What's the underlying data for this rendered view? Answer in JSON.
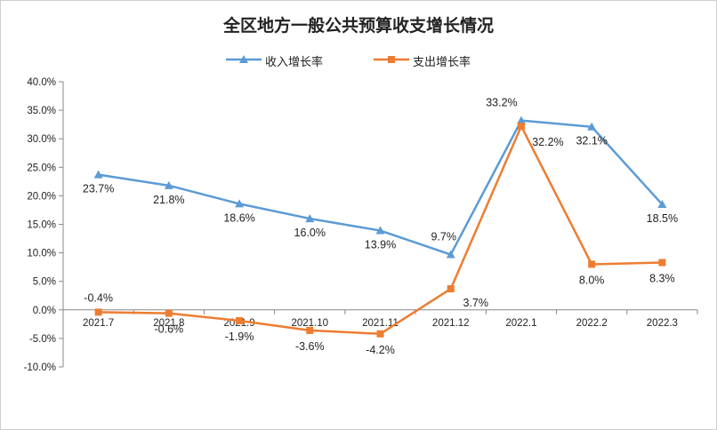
{
  "title": "全区地方一般公共预算收支增长情况",
  "colors": {
    "income": "#5b9bd5",
    "expense": "#ed7d31",
    "axis": "#888888",
    "grid": "#d9d9d9",
    "text": "#222222"
  },
  "chart_data": {
    "type": "line",
    "title": "全区地方一般公共预算收支增长情况",
    "categories": [
      "2021.7",
      "2021.8",
      "2021.9",
      "2021.10",
      "2021.11",
      "2021.12",
      "2022.1",
      "2022.2",
      "2022.3"
    ],
    "series": [
      {
        "name": "收入增长率",
        "values": [
          23.7,
          21.8,
          18.6,
          16.0,
          13.9,
          9.7,
          33.2,
          32.1,
          18.5
        ],
        "labels": [
          "23.7%",
          "21.8%",
          "18.6%",
          "16.0%",
          "13.9%",
          "9.7%",
          "33.2%",
          "32.1%",
          "18.5%"
        ],
        "marker": "triangle"
      },
      {
        "name": "支出增长率",
        "values": [
          -0.4,
          -0.6,
          -1.9,
          -3.6,
          -4.2,
          3.7,
          32.2,
          8.0,
          8.3
        ],
        "labels": [
          "-0.4%",
          "-0.6%",
          "-1.9%",
          "-3.6%",
          "-4.2%",
          "3.7%",
          "32.2%",
          "8.0%",
          "8.3%"
        ],
        "marker": "square"
      }
    ],
    "ylim": [
      -10,
      40
    ],
    "yticks": [
      "40.0%",
      "35.0%",
      "30.0%",
      "25.0%",
      "20.0%",
      "15.0%",
      "10.0%",
      "5.0%",
      "0.0%",
      "-5.0%",
      "-10.0%"
    ],
    "ytick_values": [
      40,
      35,
      30,
      25,
      20,
      15,
      10,
      5,
      0,
      -5,
      -10
    ],
    "grid": false,
    "legend": "top-center"
  }
}
